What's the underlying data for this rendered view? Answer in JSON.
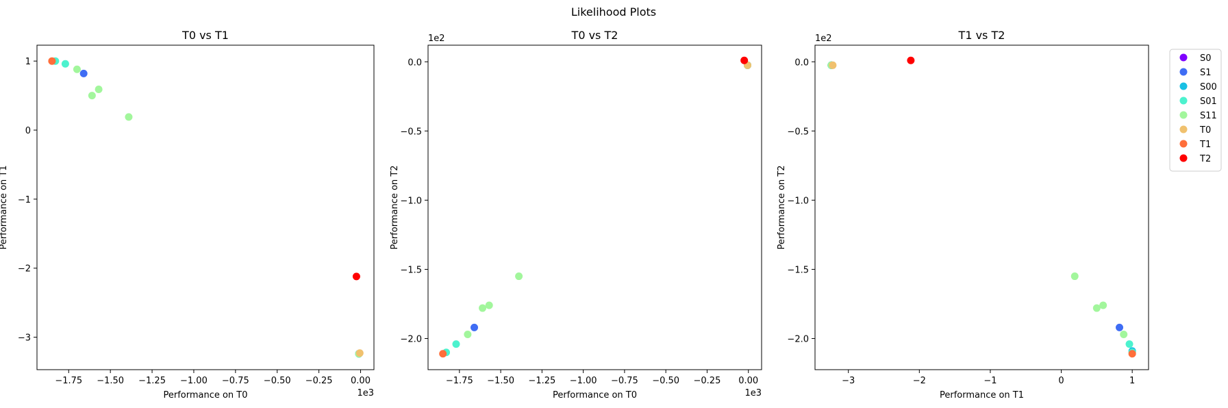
{
  "figure": {
    "title": "Likelihood Plots"
  },
  "legend": {
    "placement": "outside-right",
    "entries": [
      {
        "label": "S0",
        "color": "#7f00ff"
      },
      {
        "label": "S1",
        "color": "#3f6df4"
      },
      {
        "label": "S00",
        "color": "#19c0e4"
      },
      {
        "label": "S01",
        "color": "#4cf2ce"
      },
      {
        "label": "S11",
        "color": "#a2f69c"
      },
      {
        "label": "T0",
        "color": "#f0c16e"
      },
      {
        "label": "T1",
        "color": "#ff6e3a"
      },
      {
        "label": "T2",
        "color": "#ff0000"
      }
    ]
  },
  "chart_data": [
    {
      "type": "scatter",
      "title": "T0 vs T1",
      "xlabel": "Performance on T0",
      "ylabel": "Performance on T1",
      "x_offset_text": "1e3",
      "y_offset_text": "",
      "xlim": [
        -1940,
        80
      ],
      "ylim": [
        -3.47,
        1.23
      ],
      "xticks": [
        -1750,
        -1500,
        -1250,
        -1000,
        -750,
        -500,
        -250,
        0
      ],
      "xtick_labels": [
        "−1.75",
        "−1.50",
        "−1.25",
        "−1.00",
        "−0.75",
        "−0.50",
        "−0.25",
        "0.00"
      ],
      "yticks": [
        -3,
        -2,
        -1,
        0,
        1
      ],
      "ytick_labels": [
        "−3",
        "−2",
        "−1",
        "0",
        "1"
      ],
      "grid": false,
      "series": [
        {
          "name": "S0",
          "points": [
            [
              -10,
              -3.24
            ]
          ]
        },
        {
          "name": "S1",
          "points": [
            [
              -1660,
              0.82
            ],
            [
              -10,
              -3.24
            ]
          ]
        },
        {
          "name": "S00",
          "points": [
            [
              -10,
              -3.24
            ]
          ]
        },
        {
          "name": "S01",
          "points": [
            [
              -1830,
              1.0
            ],
            [
              -1770,
              0.96
            ],
            [
              -10,
              -3.24
            ]
          ]
        },
        {
          "name": "S11",
          "points": [
            [
              -1700,
              0.88
            ],
            [
              -1610,
              0.5
            ],
            [
              -1570,
              0.59
            ],
            [
              -1390,
              0.19
            ],
            [
              -10,
              -3.24
            ]
          ]
        },
        {
          "name": "T0",
          "points": [
            [
              -5,
              -3.23
            ]
          ]
        },
        {
          "name": "T1",
          "points": [
            [
              -1850,
              1.0
            ]
          ]
        },
        {
          "name": "T2",
          "points": [
            [
              -25,
              -2.12
            ]
          ]
        }
      ]
    },
    {
      "type": "scatter",
      "title": "T0 vs T2",
      "xlabel": "Performance on T0",
      "ylabel": "Performance on T2",
      "x_offset_text": "1e3",
      "y_offset_text": "1e2",
      "xlim": [
        -1940,
        80
      ],
      "ylim": [
        -222.5,
        12
      ],
      "xticks": [
        -1750,
        -1500,
        -1250,
        -1000,
        -750,
        -500,
        -250,
        0
      ],
      "xtick_labels": [
        "−1.75",
        "−1.50",
        "−1.25",
        "−1.00",
        "−0.75",
        "−0.50",
        "−0.25",
        "0.00"
      ],
      "yticks": [
        -200,
        -150,
        -100,
        -50,
        0
      ],
      "ytick_labels": [
        "−2.0",
        "−1.5",
        "−1.0",
        "−0.5",
        "0.0"
      ],
      "grid": false,
      "series": [
        {
          "name": "S0",
          "points": [
            [
              -5,
              -2.5
            ]
          ]
        },
        {
          "name": "S1",
          "points": [
            [
              -1660,
              -192
            ],
            [
              -5,
              -2.5
            ]
          ]
        },
        {
          "name": "S00",
          "points": [
            [
              -5,
              -2.5
            ]
          ]
        },
        {
          "name": "S01",
          "points": [
            [
              -1830,
              -210
            ],
            [
              -1770,
              -204
            ],
            [
              -5,
              -2.5
            ]
          ]
        },
        {
          "name": "S11",
          "points": [
            [
              -1700,
              -197
            ],
            [
              -1610,
              -178
            ],
            [
              -1570,
              -176
            ],
            [
              -1390,
              -155
            ],
            [
              -5,
              -2.5
            ]
          ]
        },
        {
          "name": "T0",
          "points": [
            [
              -5,
              -2.5
            ]
          ]
        },
        {
          "name": "T1",
          "points": [
            [
              -1850,
              -211
            ]
          ]
        },
        {
          "name": "T2",
          "points": [
            [
              -25,
              1
            ]
          ]
        }
      ]
    },
    {
      "type": "scatter",
      "title": "T1 vs T2",
      "xlabel": "Performance on T1",
      "ylabel": "Performance on T2",
      "x_offset_text": "",
      "y_offset_text": "1e2",
      "xlim": [
        -3.47,
        1.23
      ],
      "ylim": [
        -222.5,
        12
      ],
      "xticks": [
        -3,
        -2,
        -1,
        0,
        1
      ],
      "xtick_labels": [
        "−3",
        "−2",
        "−1",
        "0",
        "1"
      ],
      "yticks": [
        -200,
        -150,
        -100,
        -50,
        0
      ],
      "ytick_labels": [
        "−2.0",
        "−1.5",
        "−1.0",
        "−0.5",
        "0.0"
      ],
      "grid": false,
      "series": [
        {
          "name": "S0",
          "points": [
            [
              -3.24,
              -2.5
            ]
          ]
        },
        {
          "name": "S1",
          "points": [
            [
              0.82,
              -192
            ],
            [
              -3.24,
              -2.5
            ]
          ]
        },
        {
          "name": "S00",
          "points": [
            [
              -3.24,
              -2.5
            ],
            [
              1.0,
              -209
            ]
          ]
        },
        {
          "name": "S01",
          "points": [
            [
              0.96,
              -204
            ],
            [
              1.0,
              -210
            ],
            [
              -3.24,
              -2.5
            ]
          ]
        },
        {
          "name": "S11",
          "points": [
            [
              0.88,
              -197
            ],
            [
              0.5,
              -178
            ],
            [
              0.59,
              -176
            ],
            [
              0.19,
              -155
            ],
            [
              -3.24,
              -2.5
            ]
          ]
        },
        {
          "name": "T0",
          "points": [
            [
              -3.22,
              -2.5
            ]
          ]
        },
        {
          "name": "T1",
          "points": [
            [
              1.0,
              -211
            ]
          ]
        },
        {
          "name": "T2",
          "points": [
            [
              -2.12,
              1
            ]
          ]
        }
      ]
    }
  ]
}
